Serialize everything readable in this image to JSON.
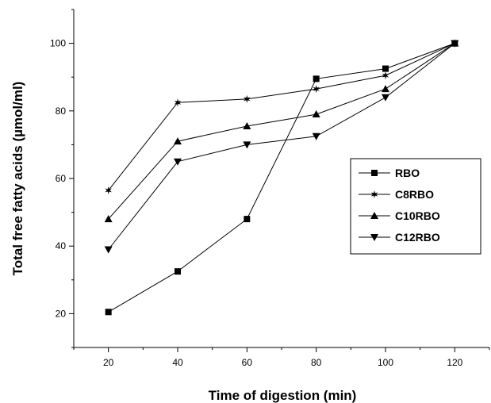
{
  "chart_data": {
    "type": "line",
    "title": "",
    "xlabel": "Time of digestion (min)",
    "ylabel": "Total free fatty acids (µmol/ml)",
    "xlim": [
      10,
      130
    ],
    "ylim": [
      10,
      110
    ],
    "xticks": [
      20,
      40,
      60,
      80,
      100,
      120
    ],
    "yticks": [
      20,
      40,
      60,
      80,
      100
    ],
    "x": [
      20,
      40,
      60,
      80,
      100,
      120
    ],
    "grid": false,
    "legend_position": "right",
    "series": [
      {
        "name": "RBO",
        "marker": "square",
        "values": [
          20.5,
          32.5,
          48,
          89.5,
          92.5,
          100
        ]
      },
      {
        "name": "C8RBO",
        "marker": "star",
        "values": [
          56.5,
          82.5,
          83.5,
          86.5,
          90.5,
          100
        ]
      },
      {
        "name": "C10RBO",
        "marker": "triangle-up",
        "values": [
          48,
          71,
          75.5,
          79,
          86.5,
          100
        ]
      },
      {
        "name": "C12RBO",
        "marker": "triangle-down",
        "values": [
          39,
          65,
          70,
          72.5,
          84,
          100
        ]
      }
    ],
    "colors": {
      "line": "#000000",
      "background": "#ffffff"
    }
  }
}
